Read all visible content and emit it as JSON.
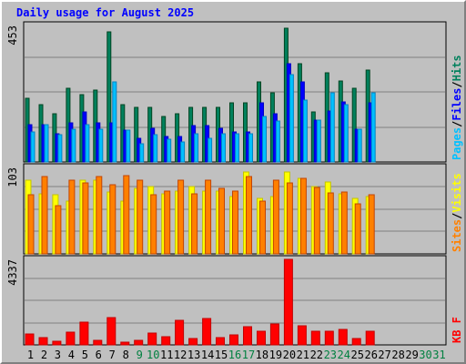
{
  "chart_data": {
    "type": "bar",
    "title": "Daily usage for August 2025",
    "categories": [
      "1",
      "2",
      "3",
      "4",
      "5",
      "6",
      "7",
      "8",
      "9",
      "10",
      "11",
      "12",
      "13",
      "14",
      "15",
      "16",
      "17",
      "18",
      "19",
      "20",
      "21",
      "22",
      "23",
      "24",
      "25",
      "26",
      "27",
      "28",
      "29",
      "30",
      "31"
    ],
    "weekend_days": [
      "9",
      "10",
      "16",
      "17",
      "23",
      "24",
      "30",
      "31"
    ],
    "colors": {
      "title": "#0000ff",
      "weekday_label": "#000000",
      "weekend_label": "#008040",
      "hits": "#00805c",
      "files": "#0000ff",
      "pages": "#00c0ff",
      "visits": "#ffff00",
      "sites": "#ff8000",
      "kbytes": "#ff0000",
      "background": "#c0c0c0"
    },
    "panels": [
      {
        "id": "hits-files-pages",
        "max_label": "453",
        "ylim": [
          0,
          453
        ],
        "legend": [
          {
            "text": "Pages",
            "color": "#00c0ff"
          },
          {
            "text": "/",
            "color": "#000000"
          },
          {
            "text": "Files",
            "color": "#0000ff"
          },
          {
            "text": "/",
            "color": "#000000"
          },
          {
            "text": "Hits",
            "color": "#00805c"
          }
        ],
        "series": [
          {
            "name": "Hits",
            "color": "#00805c",
            "values": [
              212,
              190,
              160,
              245,
              222,
              240,
              433,
              190,
              180,
              180,
              152,
              160,
              180,
              180,
              180,
              195,
              195,
              265,
              230,
              445,
              325,
              165,
              295,
              270,
              245,
              305,
              0,
              0,
              0,
              0,
              0
            ]
          },
          {
            "name": "Files",
            "color": "#0000ff",
            "values": [
              125,
              125,
              95,
              130,
              165,
              130,
              130,
              107,
              80,
              113,
              85,
              85,
              120,
              120,
              112,
              100,
              100,
              195,
              160,
              325,
              265,
              140,
              170,
              200,
              110,
              195,
              0,
              0,
              0,
              0,
              0
            ]
          },
          {
            "name": "Pages",
            "color": "#00c0ff",
            "values": [
              100,
              125,
              90,
              110,
              125,
              110,
              265,
              105,
              60,
              90,
              75,
              65,
              95,
              80,
              95,
              95,
              95,
              150,
              135,
              290,
              205,
              140,
              230,
              190,
              110,
              230,
              0,
              0,
              0,
              0,
              0
            ]
          }
        ]
      },
      {
        "id": "visits-sites",
        "max_label": "103",
        "ylim": [
          0,
          103
        ],
        "legend": [
          {
            "text": "Sites",
            "color": "#ff8000"
          },
          {
            "text": "/",
            "color": "#000000"
          },
          {
            "text": "Visits",
            "color": "#ffff00"
          }
        ],
        "series": [
          {
            "name": "Visits",
            "color": "#ffff00",
            "values": [
              88,
              72,
              70,
              63,
              88,
              88,
              74,
              63,
              78,
              80,
              72,
              75,
              80,
              75,
              75,
              68,
              98,
              66,
              68,
              98,
              90,
              80,
              86,
              72,
              66,
              68,
              0,
              0,
              0,
              0,
              0
            ]
          },
          {
            "name": "Sites",
            "color": "#ff8000",
            "values": [
              70,
              92,
              58,
              88,
              85,
              92,
              82,
              93,
              88,
              70,
              75,
              88,
              72,
              88,
              78,
              75,
              92,
              63,
              88,
              85,
              90,
              79,
              73,
              74,
              60,
              71,
              0,
              0,
              0,
              0,
              0
            ]
          }
        ]
      },
      {
        "id": "kbytes",
        "max_label": "4337",
        "ylim": [
          0,
          4337
        ],
        "legend": [
          {
            "text": "KB F",
            "color": "#ff0000"
          }
        ],
        "series": [
          {
            "name": "KB F",
            "color": "#ff0000",
            "values": [
              550,
              370,
              180,
              640,
              1150,
              220,
              1390,
              140,
              230,
              590,
              420,
              1250,
              330,
              1340,
              390,
              510,
              930,
              700,
              1060,
              4337,
              980,
              700,
              680,
              770,
              330,
              680,
              0,
              0,
              0,
              0,
              0
            ]
          }
        ]
      }
    ],
    "grid": true
  }
}
